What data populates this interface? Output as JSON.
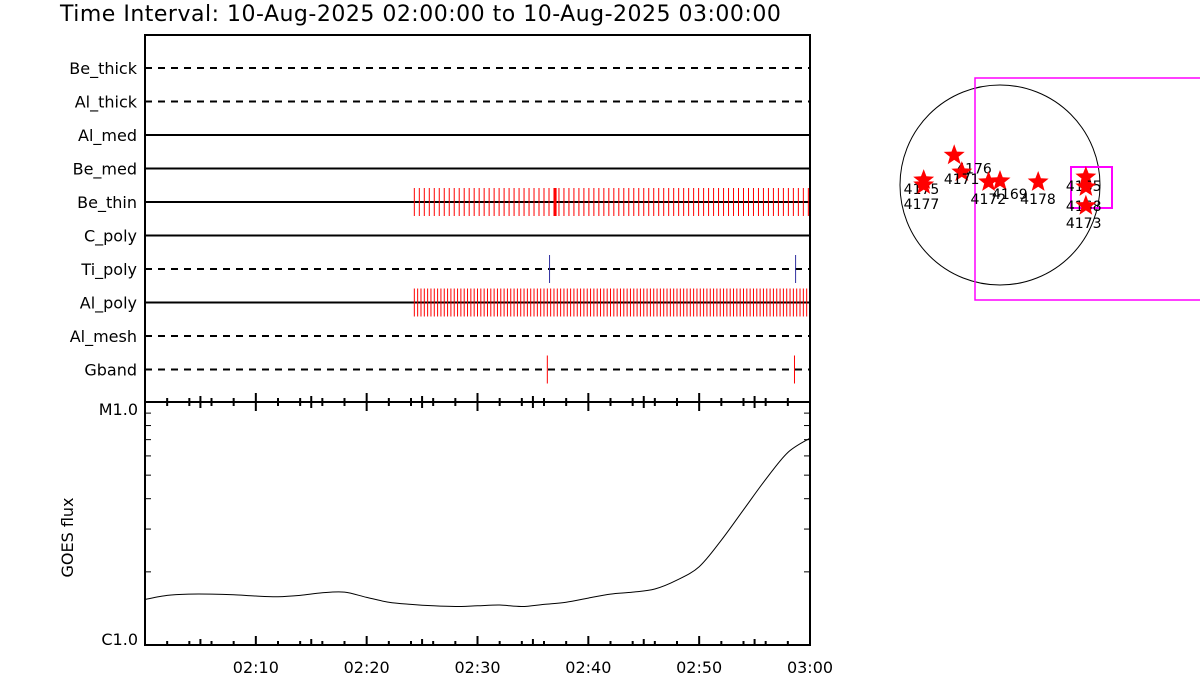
{
  "title": "Time Interval: 10-Aug-2025 02:00:00 to 10-Aug-2025 03:00:00",
  "colors": {
    "axis": "#000000",
    "event": "#ff0000",
    "ti_event": "#3030a0",
    "fov": "#ff00ff",
    "star": "#ff0000"
  },
  "chart_data": [
    {
      "type": "timeline",
      "x_range": [
        "02:00",
        "03:00"
      ],
      "x_tick_labels": [
        "02:10",
        "02:20",
        "02:30",
        "02:40",
        "02:50",
        "03:00"
      ],
      "filters": [
        {
          "name": "Be_thick",
          "style": "dashed",
          "event_color": "event",
          "events": []
        },
        {
          "name": "Al_thick",
          "style": "dashed",
          "event_color": "event",
          "events": []
        },
        {
          "name": "Al_med",
          "style": "solid",
          "event_color": "event",
          "events": []
        },
        {
          "name": "Be_med",
          "style": "solid",
          "event_color": "event",
          "events": []
        },
        {
          "name": "Be_thin",
          "style": "solid",
          "event_color": "event",
          "events_range": [
            24.3,
            59.95
          ],
          "events_step_min": 0.45,
          "thick_events": [
            37.0
          ]
        },
        {
          "name": "C_poly",
          "style": "solid",
          "event_color": "event",
          "events": []
        },
        {
          "name": "Ti_poly",
          "style": "dashed",
          "event_color": "ti_event",
          "events": [
            36.5,
            58.7
          ]
        },
        {
          "name": "Al_poly",
          "style": "solid",
          "event_color": "event",
          "events_range": [
            24.3,
            59.95
          ],
          "events_step_min": 0.3
        },
        {
          "name": "Al_mesh",
          "style": "dashed",
          "event_color": "event",
          "events": []
        },
        {
          "name": "Gband",
          "style": "dashed",
          "event_color": "event",
          "events": [
            36.3,
            58.6
          ]
        }
      ]
    },
    {
      "type": "line",
      "ylabel": "GOES flux",
      "y_tick_labels": [
        "M1.0",
        "C1.0"
      ],
      "y_scale": "log",
      "ylim": [
        1e-06,
        1e-05
      ],
      "x_range": [
        "02:00",
        "03:00"
      ],
      "x_tick_labels": [
        "02:10",
        "02:20",
        "02:30",
        "02:40",
        "02:50",
        "03:00"
      ],
      "x_minutes": [
        0,
        2,
        4,
        6,
        8,
        10,
        12,
        14,
        16,
        18,
        20,
        22,
        24,
        26,
        28,
        30,
        32,
        34,
        36,
        38,
        40,
        42,
        44,
        46,
        48,
        50,
        52,
        54,
        56,
        58,
        60
      ],
      "values": [
        1.54e-06,
        1.6e-06,
        1.62e-06,
        1.62e-06,
        1.61e-06,
        1.59e-06,
        1.58e-06,
        1.6e-06,
        1.64e-06,
        1.65e-06,
        1.57e-06,
        1.5e-06,
        1.47e-06,
        1.45e-06,
        1.44e-06,
        1.45e-06,
        1.46e-06,
        1.44e-06,
        1.47e-06,
        1.5e-06,
        1.56e-06,
        1.62e-06,
        1.65e-06,
        1.7e-06,
        1.85e-06,
        2.1e-06,
        2.7e-06,
        3.6e-06,
        4.8e-06,
        6.2e-06,
        7.1e-06
      ]
    },
    {
      "type": "scatter",
      "disk": true,
      "points": [
        {
          "label": "4176",
          "x": 0.26,
          "y": 0.52
        },
        {
          "label": "4175",
          "x": 0.1,
          "y": 0.27
        },
        {
          "label": "4177",
          "x": 0.1,
          "y": 0.22
        },
        {
          "label": "4171",
          "x": 0.3,
          "y": 0.35
        },
        {
          "label": "4172",
          "x": 0.44,
          "y": 0.25
        },
        {
          "label": "4169",
          "x": 0.5,
          "y": 0.26
        },
        {
          "label": "4178",
          "x": 0.7,
          "y": 0.25
        },
        {
          "label": "4165",
          "x": 0.95,
          "y": 0.3
        },
        {
          "label": "4168",
          "x": 0.95,
          "y": 0.2
        },
        {
          "label": "4173",
          "x": 0.95,
          "y": 0.01
        }
      ]
    }
  ]
}
